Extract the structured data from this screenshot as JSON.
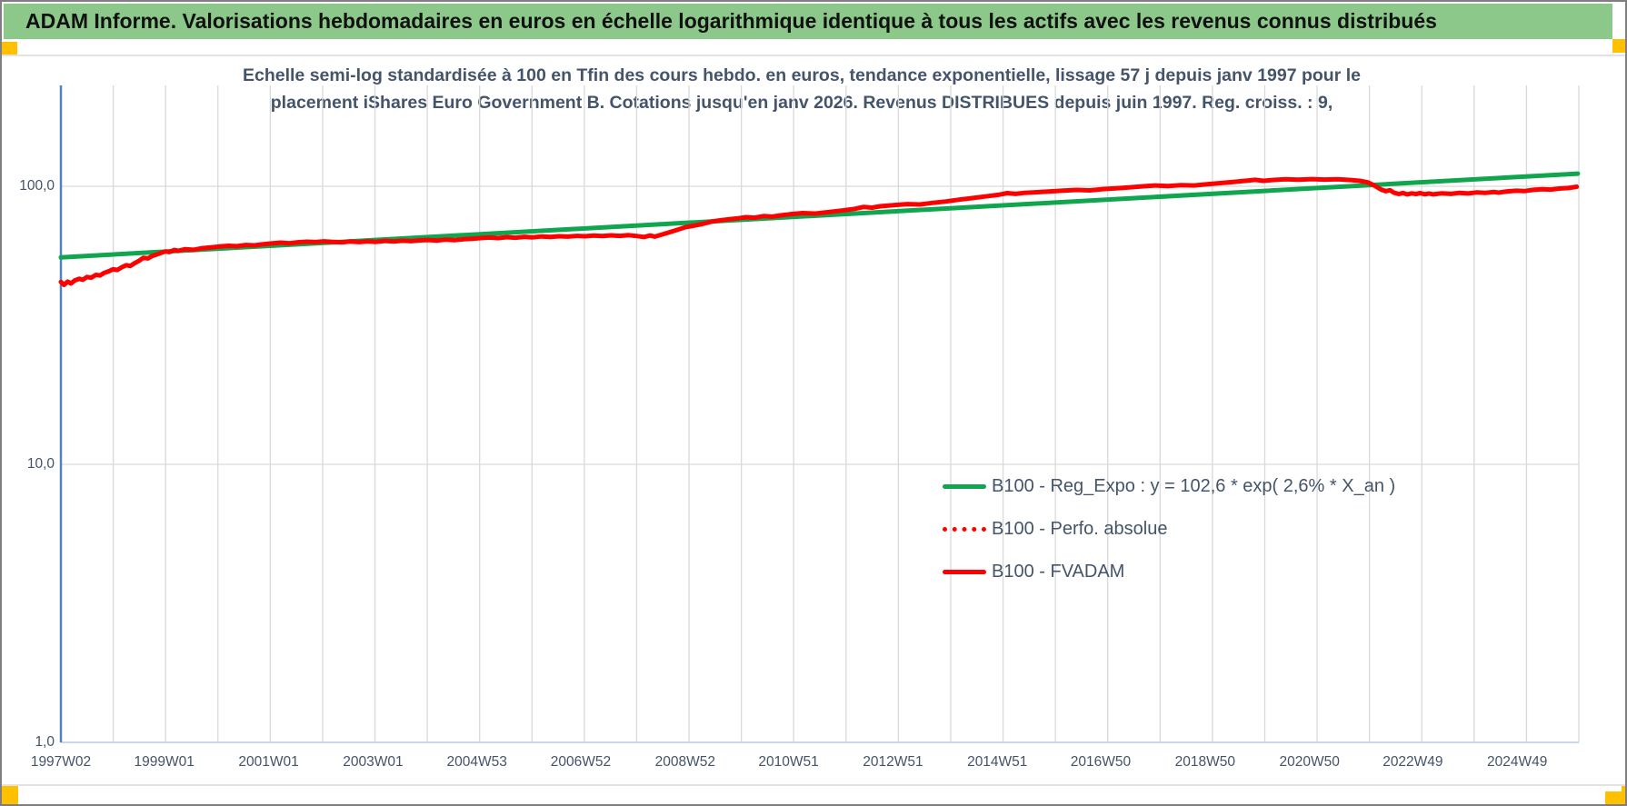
{
  "header": {
    "title": "ADAM Informe. Valorisations hebdomadaires en euros en échelle logarithmique identique à tous les actifs avec les revenus connus distribués",
    "bg_color": "#8DC88B"
  },
  "accent_color": "#FFC000",
  "chart_data": {
    "type": "line",
    "title_line1": "Echelle semi-log standardisée à 100 en Tfin des cours hebdo. en euros, tendance exponentielle, lissage 57 j depuis janv 1997 pour le",
    "title_line2": "placement iShares Euro Government B. Cotations jusqu'en janv 2026. Revenus DISTRIBUES depuis juin 1997. Reg. croiss. : 9,",
    "title": "Echelle semi-log standardisée à 100 en Tfin des cours hebdo. en euros, tendance exponentielle, lissage 57 j depuis janv 1997 pour le placement iShares Euro Government B. Cotations jusqu'en janv 2026. Revenus DISTRIBUES depuis juin 1997. Reg. croiss. : 9,",
    "xlabel": "",
    "ylabel": "",
    "grid": true,
    "legend_position": "right-middle",
    "y_axis": {
      "scale": "log",
      "range": [
        1,
        200
      ],
      "ticks": [
        {
          "text": "100,0",
          "v": 100
        },
        {
          "text": "10,0",
          "v": 10
        },
        {
          "text": "1,0",
          "v": 1
        }
      ]
    },
    "x_axis": {
      "unit": "ISO week",
      "range_t": [
        1997.02,
        2026.1
      ],
      "gridline_count": 29,
      "labels": [
        {
          "text": "1997W02",
          "t": 1997.02
        },
        {
          "text": "1999W01",
          "t": 1999.0
        },
        {
          "text": "2001W01",
          "t": 2001.0
        },
        {
          "text": "2003W01",
          "t": 2003.0
        },
        {
          "text": "2004W53",
          "t": 2004.99
        },
        {
          "text": "2006W52",
          "t": 2006.98
        },
        {
          "text": "2008W52",
          "t": 2008.98
        },
        {
          "text": "2010W51",
          "t": 2010.96
        },
        {
          "text": "2012W51",
          "t": 2012.96
        },
        {
          "text": "2014W51",
          "t": 2014.96
        },
        {
          "text": "2016W50",
          "t": 2016.94
        },
        {
          "text": "2018W50",
          "t": 2018.94
        },
        {
          "text": "2020W50",
          "t": 2020.94
        },
        {
          "text": "2022W49",
          "t": 2022.92
        },
        {
          "text": "2024W49",
          "t": 2024.92
        }
      ]
    },
    "series": [
      {
        "name": "B100 - Reg_Expo : y = 102,6 * exp( 2,6% *  X_an )",
        "color": "#0FA64F",
        "style": "solid",
        "width": 5,
        "kind": "exponential_trend",
        "points": [
          [
            1997.02,
            55.5
          ],
          [
            2026.08,
            111.0
          ]
        ]
      },
      {
        "name": "B100 - Perfo. absolue",
        "color": "#FE0000",
        "style": "dotted",
        "width": 4.5,
        "kind": "line",
        "points_ref": "B100 - FVADAM",
        "note": "overlaps the FVADAM series exactly (hidden beneath it on screen)"
      },
      {
        "name": "B100 - FVADAM",
        "color": "#FE0000",
        "style": "solid",
        "width": 5,
        "kind": "line",
        "points": [
          [
            1997.02,
            45.3
          ],
          [
            1997.08,
            44.2
          ],
          [
            1997.15,
            45.4
          ],
          [
            1997.21,
            44.7
          ],
          [
            1997.29,
            45.9
          ],
          [
            1997.37,
            46.5
          ],
          [
            1997.44,
            46.1
          ],
          [
            1997.52,
            47.2
          ],
          [
            1997.6,
            46.9
          ],
          [
            1997.69,
            48.0
          ],
          [
            1997.77,
            47.8
          ],
          [
            1997.85,
            48.8
          ],
          [
            1997.94,
            49.5
          ],
          [
            1998.02,
            50.3
          ],
          [
            1998.1,
            50.0
          ],
          [
            1998.19,
            51.2
          ],
          [
            1998.27,
            52.0
          ],
          [
            1998.35,
            51.7
          ],
          [
            1998.44,
            53.0
          ],
          [
            1998.52,
            54.0
          ],
          [
            1998.6,
            55.3
          ],
          [
            1998.69,
            55.0
          ],
          [
            1998.77,
            56.2
          ],
          [
            1998.85,
            56.8
          ],
          [
            1998.94,
            57.6
          ],
          [
            1999.02,
            58.3
          ],
          [
            1999.1,
            58.0
          ],
          [
            1999.19,
            59.0
          ],
          [
            1999.27,
            58.6
          ],
          [
            1999.4,
            59.4
          ],
          [
            1999.56,
            59.1
          ],
          [
            1999.73,
            59.9
          ],
          [
            1999.9,
            60.3
          ],
          [
            2000.06,
            60.7
          ],
          [
            2000.23,
            61.1
          ],
          [
            2000.4,
            60.9
          ],
          [
            2000.56,
            61.5
          ],
          [
            2000.73,
            61.3
          ],
          [
            2000.9,
            61.9
          ],
          [
            2001.06,
            62.3
          ],
          [
            2001.23,
            62.7
          ],
          [
            2001.4,
            62.4
          ],
          [
            2001.56,
            62.9
          ],
          [
            2001.73,
            63.2
          ],
          [
            2001.9,
            63.0
          ],
          [
            2002.06,
            63.4
          ],
          [
            2002.23,
            63.1
          ],
          [
            2002.4,
            62.9
          ],
          [
            2002.56,
            63.3
          ],
          [
            2002.73,
            63.0
          ],
          [
            2002.9,
            63.4
          ],
          [
            2003.06,
            63.1
          ],
          [
            2003.23,
            63.6
          ],
          [
            2003.4,
            63.3
          ],
          [
            2003.56,
            63.7
          ],
          [
            2003.73,
            63.5
          ],
          [
            2003.9,
            63.9
          ],
          [
            2004.06,
            64.1
          ],
          [
            2004.23,
            63.8
          ],
          [
            2004.4,
            64.3
          ],
          [
            2004.56,
            64.0
          ],
          [
            2004.73,
            64.5
          ],
          [
            2004.9,
            64.8
          ],
          [
            2005.06,
            65.1
          ],
          [
            2005.23,
            65.4
          ],
          [
            2005.4,
            65.1
          ],
          [
            2005.56,
            65.6
          ],
          [
            2005.73,
            65.3
          ],
          [
            2005.9,
            65.8
          ],
          [
            2006.06,
            65.5
          ],
          [
            2006.23,
            66.0
          ],
          [
            2006.4,
            65.7
          ],
          [
            2006.56,
            66.1
          ],
          [
            2006.73,
            65.9
          ],
          [
            2006.9,
            66.3
          ],
          [
            2007.06,
            66.1
          ],
          [
            2007.23,
            66.5
          ],
          [
            2007.4,
            66.2
          ],
          [
            2007.56,
            66.6
          ],
          [
            2007.73,
            66.3
          ],
          [
            2007.9,
            66.7
          ],
          [
            2008.06,
            66.2
          ],
          [
            2008.19,
            65.7
          ],
          [
            2008.31,
            66.5
          ],
          [
            2008.4,
            65.9
          ],
          [
            2008.52,
            66.9
          ],
          [
            2008.65,
            68.1
          ],
          [
            2008.81,
            69.6
          ],
          [
            2008.98,
            71.2
          ],
          [
            2009.15,
            72.2
          ],
          [
            2009.31,
            73.2
          ],
          [
            2009.48,
            74.6
          ],
          [
            2009.65,
            75.4
          ],
          [
            2009.81,
            76.1
          ],
          [
            2009.98,
            76.7
          ],
          [
            2010.15,
            77.4
          ],
          [
            2010.31,
            77.1
          ],
          [
            2010.48,
            78.1
          ],
          [
            2010.65,
            77.8
          ],
          [
            2010.81,
            78.6
          ],
          [
            2010.98,
            79.3
          ],
          [
            2011.23,
            80.1
          ],
          [
            2011.48,
            79.8
          ],
          [
            2011.73,
            80.8
          ],
          [
            2011.98,
            81.8
          ],
          [
            2012.23,
            83.0
          ],
          [
            2012.4,
            84.3
          ],
          [
            2012.56,
            83.8
          ],
          [
            2012.73,
            84.8
          ],
          [
            2012.98,
            85.6
          ],
          [
            2013.23,
            86.3
          ],
          [
            2013.48,
            86.0
          ],
          [
            2013.73,
            87.2
          ],
          [
            2013.98,
            88.2
          ],
          [
            2014.23,
            89.5
          ],
          [
            2014.48,
            90.7
          ],
          [
            2014.73,
            91.9
          ],
          [
            2014.98,
            93.2
          ],
          [
            2015.15,
            94.5
          ],
          [
            2015.31,
            93.9
          ],
          [
            2015.48,
            94.7
          ],
          [
            2015.73,
            95.2
          ],
          [
            2015.98,
            95.9
          ],
          [
            2016.23,
            96.5
          ],
          [
            2016.48,
            97.0
          ],
          [
            2016.73,
            96.7
          ],
          [
            2016.98,
            97.7
          ],
          [
            2017.23,
            98.3
          ],
          [
            2017.48,
            99.0
          ],
          [
            2017.73,
            99.9
          ],
          [
            2017.98,
            100.7
          ],
          [
            2018.23,
            100.2
          ],
          [
            2018.48,
            101.0
          ],
          [
            2018.73,
            100.7
          ],
          [
            2018.98,
            101.7
          ],
          [
            2019.23,
            102.7
          ],
          [
            2019.48,
            103.7
          ],
          [
            2019.73,
            104.7
          ],
          [
            2019.9,
            105.5
          ],
          [
            2020.06,
            104.6
          ],
          [
            2020.23,
            105.3
          ],
          [
            2020.48,
            106.0
          ],
          [
            2020.73,
            105.6
          ],
          [
            2020.98,
            106.1
          ],
          [
            2021.23,
            105.7
          ],
          [
            2021.48,
            106.0
          ],
          [
            2021.73,
            105.3
          ],
          [
            2021.9,
            104.6
          ],
          [
            2022.06,
            103.3
          ],
          [
            2022.15,
            101.4
          ],
          [
            2022.23,
            99.4
          ],
          [
            2022.31,
            97.4
          ],
          [
            2022.4,
            96.0
          ],
          [
            2022.48,
            96.8
          ],
          [
            2022.56,
            94.8
          ],
          [
            2022.65,
            93.8
          ],
          [
            2022.73,
            94.6
          ],
          [
            2022.81,
            93.5
          ],
          [
            2022.9,
            94.3
          ],
          [
            2022.98,
            93.8
          ],
          [
            2023.06,
            94.5
          ],
          [
            2023.15,
            93.6
          ],
          [
            2023.23,
            94.2
          ],
          [
            2023.31,
            93.5
          ],
          [
            2023.48,
            94.4
          ],
          [
            2023.65,
            93.9
          ],
          [
            2023.81,
            94.7
          ],
          [
            2023.98,
            94.2
          ],
          [
            2024.15,
            95.1
          ],
          [
            2024.31,
            94.7
          ],
          [
            2024.48,
            95.4
          ],
          [
            2024.56,
            94.9
          ],
          [
            2024.73,
            95.9
          ],
          [
            2024.9,
            96.4
          ],
          [
            2025.06,
            96.1
          ],
          [
            2025.23,
            97.1
          ],
          [
            2025.4,
            97.6
          ],
          [
            2025.56,
            97.3
          ],
          [
            2025.73,
            98.1
          ],
          [
            2025.9,
            98.6
          ],
          [
            2026.02,
            99.3
          ],
          [
            2026.06,
            99.6
          ]
        ]
      }
    ],
    "colors": {
      "grid": "#D9D9D9",
      "y_axis_line": "#5581BE",
      "x_axis_line": "#C9D6EA",
      "text": "#44546A"
    }
  }
}
